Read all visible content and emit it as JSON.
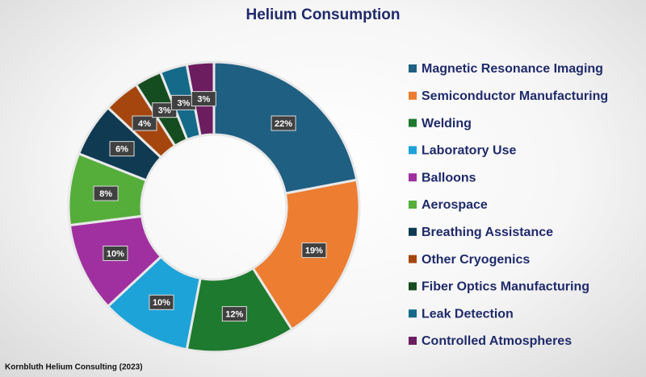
{
  "chart_data": {
    "type": "donut",
    "title": "Helium Consumption",
    "source": "Kornbluth Helium Consulting (2023)",
    "categories": [
      "Magnetic Resonance Imaging",
      "Semiconductor Manufacturing",
      "Welding",
      "Laboratory Use",
      "Balloons",
      "Aerospace",
      "Breathing Assistance",
      "Other Cryogenics",
      "Fiber Optics Manufacturing",
      "Leak Detection",
      "Controlled Atmospheres"
    ],
    "values": [
      22,
      19,
      12,
      10,
      10,
      8,
      6,
      4,
      3,
      3,
      3
    ],
    "value_labels": [
      "22%",
      "19%",
      "12%",
      "10%",
      "10%",
      "8%",
      "6%",
      "4%",
      "3%",
      "3%",
      "3%"
    ],
    "colors": [
      "#1f5f82",
      "#ed7d31",
      "#1e7a2e",
      "#1ea3d8",
      "#a0309f",
      "#55ad3a",
      "#0f3a52",
      "#a6460f",
      "#164d20",
      "#156a8a",
      "#6b1d5f"
    ],
    "legend": "right"
  }
}
